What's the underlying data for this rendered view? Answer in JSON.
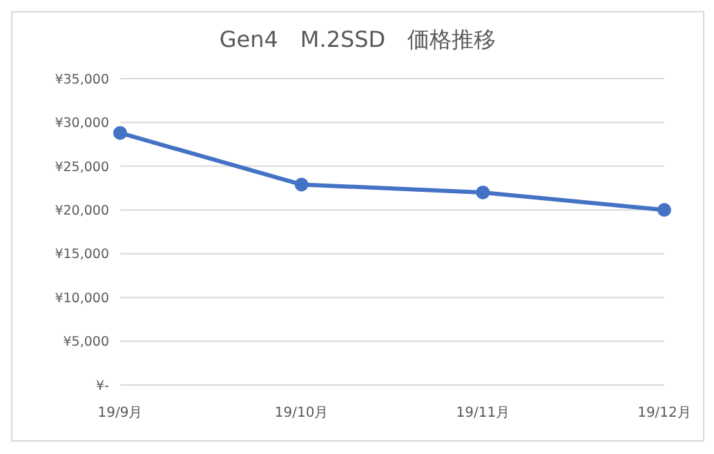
{
  "chart_data": {
    "type": "line",
    "title": "Gen4　M.2SSD　価格推移",
    "categories": [
      "19/9月",
      "19/10月",
      "19/11月",
      "19/12月"
    ],
    "series": [
      {
        "color": "#4472c4",
        "values": [
          28800,
          22900,
          22000,
          20000
        ]
      }
    ],
    "ylim": [
      0,
      35000
    ],
    "yticks": [
      {
        "value": 0,
        "label": "¥-"
      },
      {
        "value": 5000,
        "label": "¥5,000"
      },
      {
        "value": 10000,
        "label": "¥10,000"
      },
      {
        "value": 15000,
        "label": "¥15,000"
      },
      {
        "value": 20000,
        "label": "¥20,000"
      },
      {
        "value": 25000,
        "label": "¥25,000"
      },
      {
        "value": 30000,
        "label": "¥30,000"
      },
      {
        "value": 35000,
        "label": "¥35,000"
      }
    ],
    "grid": "y",
    "legend": false,
    "marker": "circle",
    "line_style": "solid"
  }
}
